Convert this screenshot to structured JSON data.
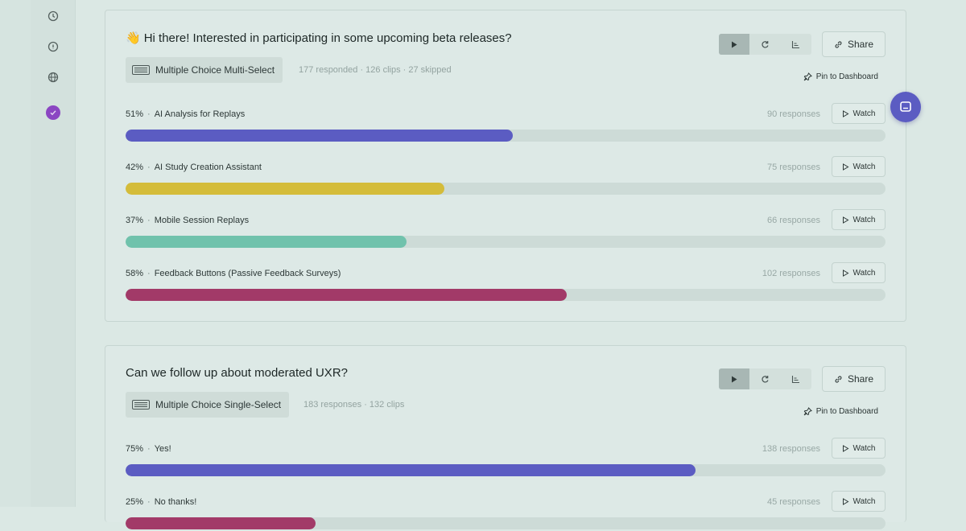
{
  "sidebar": {
    "items": [
      {
        "icon": "clock-icon"
      },
      {
        "icon": "info-icon"
      },
      {
        "icon": "globe-icon"
      },
      {
        "icon": "survey-icon",
        "active": true
      }
    ]
  },
  "questions": [
    {
      "emoji": "👋",
      "title": "Hi there! Interested in participating in some upcoming beta releases?",
      "type_label": "Multiple Choice Multi-Select",
      "meta": "177 responded · 126 clips · 27 skipped",
      "share_label": "Share",
      "pin_label": "Pin to Dashboard",
      "watch_label": "Watch",
      "options": [
        {
          "percent": "51%",
          "label": "AI Analysis for Replays",
          "responses": "90 responses",
          "fraction": 0.51,
          "color": "#5b5cc2"
        },
        {
          "percent": "42%",
          "label": "AI Study Creation Assistant",
          "responses": "75 responses",
          "fraction": 0.42,
          "color": "#d4bc3a"
        },
        {
          "percent": "37%",
          "label": "Mobile Session Replays",
          "responses": "66 responses",
          "fraction": 0.37,
          "color": "#70c2ac"
        },
        {
          "percent": "58%",
          "label": "Feedback Buttons (Passive Feedback Surveys)",
          "responses": "102 responses",
          "fraction": 0.58,
          "color": "#a23a68"
        }
      ]
    },
    {
      "emoji": "",
      "title": "Can we follow up about moderated UXR?",
      "type_label": "Multiple Choice Single-Select",
      "meta": "183 responses · 132 clips",
      "share_label": "Share",
      "pin_label": "Pin to Dashboard",
      "watch_label": "Watch",
      "options": [
        {
          "percent": "75%",
          "label": "Yes!",
          "responses": "138 responses",
          "fraction": 0.75,
          "color": "#5b5cc2"
        },
        {
          "percent": "25%",
          "label": "No thanks!",
          "responses": "45 responses",
          "fraction": 0.25,
          "color": "#a23a68"
        }
      ]
    }
  ]
}
